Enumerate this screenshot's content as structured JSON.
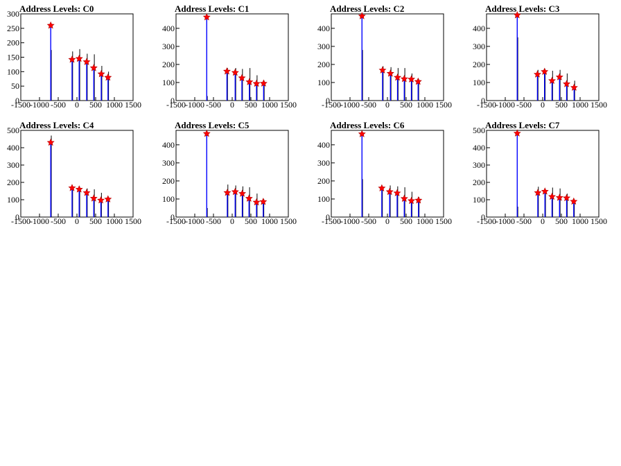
{
  "figure": {
    "panel_titles": [
      "Address Levels: C0",
      "Address Levels: C1",
      "Address Levels: C2",
      "Address Levels: C3",
      "Address Levels: C4",
      "Address Levels: C5",
      "Address Levels: C6",
      "Address Levels: C7"
    ]
  },
  "chart_data": [
    {
      "type": "histogram",
      "title": "Address Levels: C0",
      "xlim": [
        -1500,
        1500
      ],
      "ylim": [
        0,
        300
      ],
      "xticks": [
        -1500,
        -1000,
        -500,
        0,
        500,
        1000,
        1500
      ],
      "yticks": [
        0,
        50,
        100,
        150,
        200,
        250,
        300
      ],
      "peaks": [
        {
          "x": -700,
          "y": 260
        },
        {
          "x": -130,
          "y": 142
        },
        {
          "x": 60,
          "y": 145
        },
        {
          "x": 260,
          "y": 134
        },
        {
          "x": 450,
          "y": 113
        },
        {
          "x": 650,
          "y": 92
        },
        {
          "x": 830,
          "y": 80
        }
      ],
      "black_heights": [
        175,
        170,
        178,
        162,
        160,
        120,
        100
      ],
      "colors": {
        "histogram": "#0000ff",
        "overlay": "#000000",
        "marker": "#ff0000"
      }
    },
    {
      "type": "histogram",
      "title": "Address Levels: C1",
      "xlim": [
        -1500,
        1500
      ],
      "ylim": [
        0,
        480
      ],
      "xticks": [
        -1500,
        -1000,
        -500,
        0,
        500,
        1000,
        1500
      ],
      "yticks": [
        0,
        100,
        200,
        300,
        400
      ],
      "peaks": [
        {
          "x": -680,
          "y": 462
        },
        {
          "x": -140,
          "y": 162
        },
        {
          "x": 80,
          "y": 155
        },
        {
          "x": 260,
          "y": 125
        },
        {
          "x": 460,
          "y": 103
        },
        {
          "x": 650,
          "y": 94
        },
        {
          "x": 840,
          "y": 95
        }
      ],
      "black_heights": [
        25,
        180,
        180,
        175,
        180,
        140,
        110
      ],
      "colors": {
        "histogram": "#0000ff",
        "overlay": "#000000",
        "marker": "#ff0000"
      }
    },
    {
      "type": "histogram",
      "title": "Address Levels: C2",
      "xlim": [
        -1500,
        1500
      ],
      "ylim": [
        0,
        480
      ],
      "xticks": [
        -1500,
        -1000,
        -500,
        0,
        500,
        1000,
        1500
      ],
      "yticks": [
        0,
        100,
        200,
        300,
        400
      ],
      "peaks": [
        {
          "x": -680,
          "y": 468
        },
        {
          "x": -130,
          "y": 168
        },
        {
          "x": 80,
          "y": 150
        },
        {
          "x": 270,
          "y": 128
        },
        {
          "x": 450,
          "y": 120
        },
        {
          "x": 640,
          "y": 118
        },
        {
          "x": 820,
          "y": 105
        }
      ],
      "black_heights": [
        280,
        190,
        185,
        180,
        180,
        150,
        120
      ],
      "colors": {
        "histogram": "#0000ff",
        "overlay": "#000000",
        "marker": "#ff0000"
      }
    },
    {
      "type": "histogram",
      "title": "Address Levels: C3",
      "xlim": [
        -1500,
        1500
      ],
      "ylim": [
        0,
        480
      ],
      "xticks": [
        -1500,
        -1000,
        -500,
        0,
        500,
        1000,
        1500
      ],
      "yticks": [
        0,
        100,
        200,
        300,
        400
      ],
      "peaks": [
        {
          "x": -680,
          "y": 473
        },
        {
          "x": -140,
          "y": 145
        },
        {
          "x": 50,
          "y": 160
        },
        {
          "x": 250,
          "y": 110
        },
        {
          "x": 450,
          "y": 130
        },
        {
          "x": 640,
          "y": 92
        },
        {
          "x": 840,
          "y": 72
        }
      ],
      "black_heights": [
        350,
        170,
        175,
        165,
        170,
        150,
        110
      ],
      "colors": {
        "histogram": "#0000ff",
        "overlay": "#000000",
        "marker": "#ff0000"
      }
    },
    {
      "type": "histogram",
      "title": "Address Levels: C4",
      "xlim": [
        -1500,
        1500
      ],
      "ylim": [
        0,
        500
      ],
      "xticks": [
        -1500,
        -1000,
        -500,
        0,
        500,
        1000,
        1500
      ],
      "yticks": [
        0,
        100,
        200,
        300,
        400,
        500
      ],
      "peaks": [
        {
          "x": -700,
          "y": 430
        },
        {
          "x": -130,
          "y": 168
        },
        {
          "x": 60,
          "y": 160
        },
        {
          "x": 260,
          "y": 140
        },
        {
          "x": 450,
          "y": 108
        },
        {
          "x": 640,
          "y": 97
        },
        {
          "x": 830,
          "y": 103
        }
      ],
      "black_heights": [
        470,
        170,
        175,
        165,
        160,
        140,
        115
      ],
      "colors": {
        "histogram": "#0000ff",
        "overlay": "#000000",
        "marker": "#ff0000"
      }
    },
    {
      "type": "histogram",
      "title": "Address Levels: C5",
      "xlim": [
        -1500,
        1500
      ],
      "ylim": [
        0,
        480
      ],
      "xticks": [
        -1500,
        -1000,
        -500,
        0,
        500,
        1000,
        1500
      ],
      "yticks": [
        0,
        100,
        200,
        300,
        400
      ],
      "peaks": [
        {
          "x": -680,
          "y": 462
        },
        {
          "x": -130,
          "y": 135
        },
        {
          "x": 80,
          "y": 140
        },
        {
          "x": 270,
          "y": 130
        },
        {
          "x": 450,
          "y": 103
        },
        {
          "x": 650,
          "y": 82
        },
        {
          "x": 830,
          "y": 85
        }
      ],
      "black_heights": [
        50,
        180,
        175,
        170,
        165,
        130,
        100
      ],
      "colors": {
        "histogram": "#0000ff",
        "overlay": "#000000",
        "marker": "#ff0000"
      }
    },
    {
      "type": "histogram",
      "title": "Address Levels: C6",
      "xlim": [
        -1500,
        1500
      ],
      "ylim": [
        0,
        480
      ],
      "xticks": [
        -1500,
        -1000,
        -500,
        0,
        500,
        1000,
        1500
      ],
      "yticks": [
        0,
        100,
        200,
        300,
        400
      ],
      "peaks": [
        {
          "x": -680,
          "y": 460
        },
        {
          "x": -150,
          "y": 160
        },
        {
          "x": 60,
          "y": 140
        },
        {
          "x": 260,
          "y": 133
        },
        {
          "x": 450,
          "y": 102
        },
        {
          "x": 640,
          "y": 90
        },
        {
          "x": 830,
          "y": 93
        }
      ],
      "black_heights": [
        210,
        170,
        175,
        170,
        165,
        140,
        110
      ],
      "colors": {
        "histogram": "#0000ff",
        "overlay": "#000000",
        "marker": "#ff0000"
      }
    },
    {
      "type": "histogram",
      "title": "Address Levels: C7",
      "xlim": [
        -1500,
        1500
      ],
      "ylim": [
        0,
        500
      ],
      "xticks": [
        -1500,
        -1000,
        -500,
        0,
        500,
        1000,
        1500
      ],
      "yticks": [
        0,
        100,
        200,
        300,
        400,
        500
      ],
      "peaks": [
        {
          "x": -680,
          "y": 483
        },
        {
          "x": -130,
          "y": 140
        },
        {
          "x": 60,
          "y": 148
        },
        {
          "x": 250,
          "y": 118
        },
        {
          "x": 450,
          "y": 112
        },
        {
          "x": 640,
          "y": 110
        },
        {
          "x": 830,
          "y": 90
        }
      ],
      "black_heights": [
        60,
        175,
        160,
        170,
        165,
        135,
        100
      ],
      "colors": {
        "histogram": "#0000ff",
        "overlay": "#000000",
        "marker": "#ff0000"
      }
    }
  ]
}
